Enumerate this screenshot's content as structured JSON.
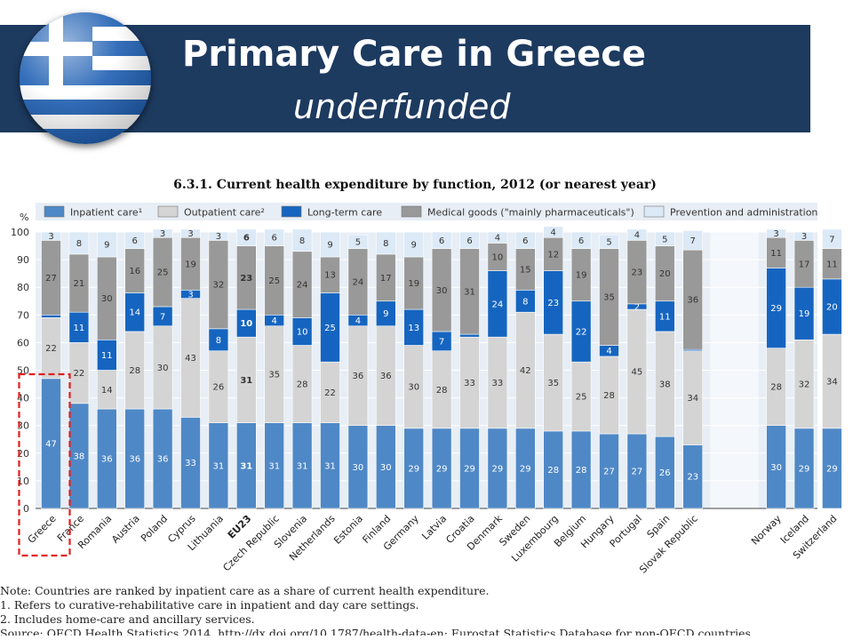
{
  "header": {
    "title": "Primary Care in Greece",
    "subtitle": "underfunded"
  },
  "notes": {
    "note": "Note:  Countries are ranked by inpatient care as a share of current health expenditure.",
    "footnote1": "1.   Refers to curative-rehabilitative care in inpatient and day care settings.",
    "footnote2": "2.   Includes home-care and ancillary services.",
    "source": "Source:  OECD Health Statistics 2014, http://dx.doi.org/10.1787/health-data-en; Eurostat Statistics Database for non-OECD countries."
  },
  "chart_data": {
    "type": "bar",
    "stacked": true,
    "title": "6.3.1.  Current health expenditure by function, 2012 (or nearest year)",
    "ylabel": "%",
    "ylim": [
      0,
      100
    ],
    "yticks": [
      0,
      10,
      20,
      30,
      40,
      50,
      60,
      70,
      80,
      90,
      100
    ],
    "legend_position": "top",
    "categories": [
      "Greece",
      "France",
      "Romania",
      "Austria",
      "Poland",
      "Cyprus",
      "Lithuania",
      "EU23",
      "Czech Republic",
      "Slovenia",
      "Netherlands",
      "Estonia",
      "Finland",
      "Germany",
      "Latvia",
      "Croatia",
      "Denmark",
      "Sweden",
      "Luxembourg",
      "Belgium",
      "Hungary",
      "Portugal",
      "Spain",
      "Slovak Republic",
      "Norway",
      "Iceland",
      "Switzerland"
    ],
    "highlight": "Greece",
    "emphasis": "EU23",
    "series": [
      {
        "name": "Inpatient care¹",
        "color": "#4f88c6",
        "values": [
          47,
          38,
          36,
          36,
          36,
          33,
          31,
          31,
          31,
          31,
          31,
          30,
          30,
          29,
          29,
          29,
          29,
          29,
          28,
          28,
          27,
          27,
          26,
          23,
          30,
          29,
          29
        ]
      },
      {
        "name": "Outpatient care²",
        "color": "#d4d4d4",
        "values": [
          22,
          22,
          14,
          28,
          30,
          43,
          26,
          31,
          35,
          28,
          22,
          36,
          36,
          30,
          28,
          33,
          33,
          42,
          35,
          25,
          28,
          45,
          38,
          34,
          28,
          32,
          34
        ]
      },
      {
        "name": "Long-term care",
        "color": "#1565c0",
        "values": [
          1,
          11,
          11,
          14,
          7,
          3,
          8,
          10,
          4,
          10,
          25,
          4,
          9,
          13,
          7,
          1,
          24,
          8,
          23,
          22,
          4,
          2,
          11,
          0.5,
          29,
          19,
          20
        ]
      },
      {
        "name": "Medical goods (\"mainly pharmaceuticals\")",
        "color": "#999999",
        "values": [
          27,
          21,
          30,
          16,
          25,
          19,
          32,
          23,
          25,
          24,
          13,
          24,
          17,
          19,
          30,
          31,
          10,
          15,
          12,
          19,
          35,
          23,
          20,
          36,
          11,
          17,
          11
        ]
      },
      {
        "name": "Prevention and administration",
        "color": "#dce9f6",
        "values": [
          3,
          8,
          9,
          6,
          3,
          3,
          3,
          6,
          6,
          8,
          9,
          5,
          8,
          9,
          6,
          6,
          4,
          6,
          4,
          6,
          5,
          4,
          5,
          7,
          3,
          3,
          7
        ]
      }
    ],
    "labels": [
      [
        "47",
        "22",
        "",
        "27",
        "3"
      ],
      [
        "38",
        "22",
        "11",
        "21",
        "8"
      ],
      [
        "36",
        "14",
        "11",
        "30",
        "9"
      ],
      [
        "36",
        "28",
        "14",
        "16",
        "6"
      ],
      [
        "36",
        "30",
        "7",
        "25",
        "3"
      ],
      [
        "33",
        "43",
        "3",
        "19",
        "3"
      ],
      [
        "31",
        "26",
        "8",
        "32",
        "3"
      ],
      [
        "31",
        "31",
        "10",
        "23",
        "6"
      ],
      [
        "31",
        "35",
        "4",
        "25",
        "6"
      ],
      [
        "31",
        "28",
        "10",
        "24",
        "8"
      ],
      [
        "31",
        "22",
        "25",
        "13",
        "9"
      ],
      [
        "30",
        "36",
        "4",
        "24",
        "5"
      ],
      [
        "30",
        "36",
        "9",
        "17",
        "8"
      ],
      [
        "29",
        "30",
        "13",
        "19",
        "9"
      ],
      [
        "29",
        "28",
        "7",
        "30",
        "6"
      ],
      [
        "29",
        "33",
        "",
        "31",
        "6"
      ],
      [
        "29",
        "33",
        "24",
        "10",
        "4"
      ],
      [
        "29",
        "42",
        "8",
        "15",
        "6"
      ],
      [
        "28",
        "35",
        "23",
        "12",
        "4"
      ],
      [
        "28",
        "25",
        "22",
        "19",
        "6"
      ],
      [
        "27",
        "28",
        "4",
        "35",
        "5"
      ],
      [
        "27",
        "45",
        "2",
        "23",
        "4"
      ],
      [
        "26",
        "38",
        "11",
        "20",
        "5"
      ],
      [
        "23",
        "34",
        "",
        "36",
        "7"
      ],
      [
        "30",
        "28",
        "29",
        "11",
        "3"
      ],
      [
        "29",
        "32",
        "19",
        "17",
        "3"
      ],
      [
        "29",
        "34",
        "20",
        "11",
        "7"
      ]
    ]
  }
}
